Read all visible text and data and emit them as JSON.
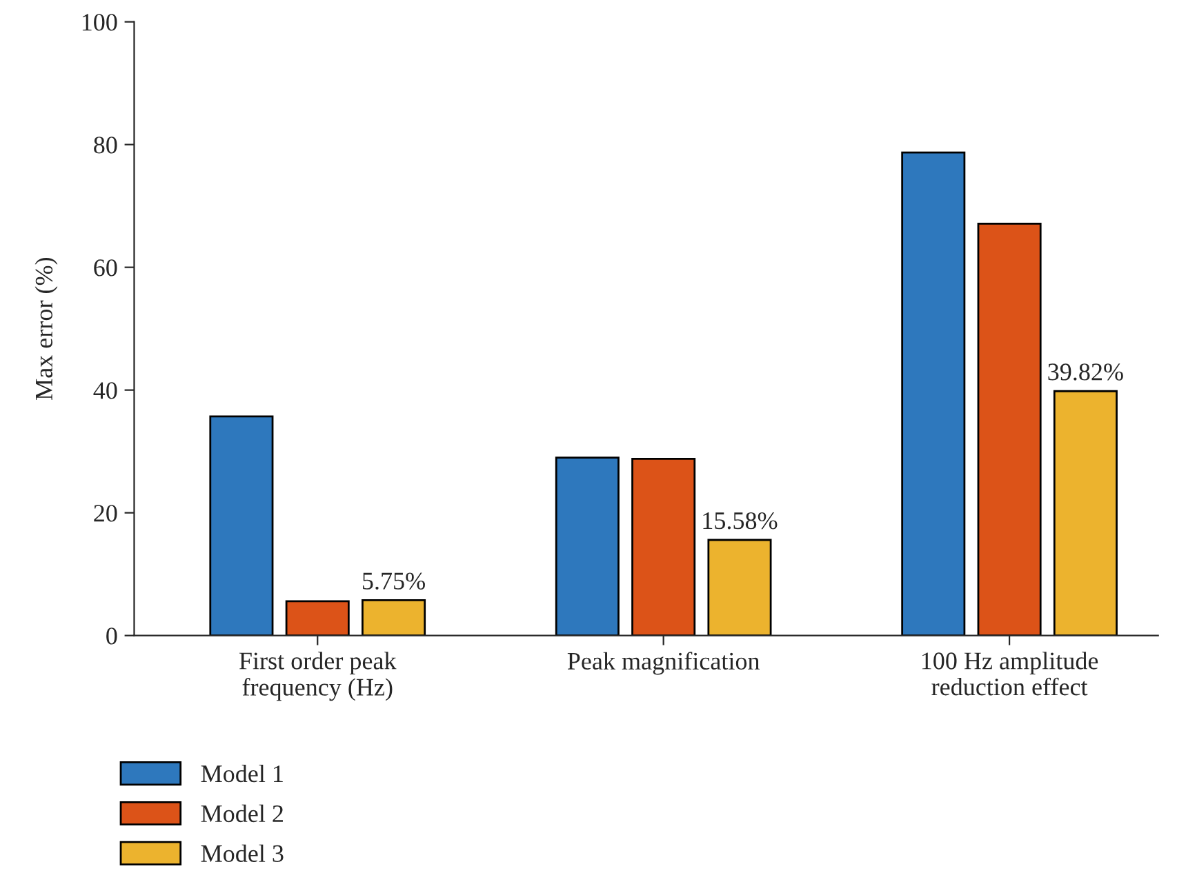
{
  "chart_data": {
    "type": "bar",
    "ylabel": "Max error (%)",
    "categories": [
      "First order peak\nfrequency (Hz)",
      "Peak magnification",
      "100 Hz amplitude\nreduction effect"
    ],
    "series": [
      {
        "name": "Model 1",
        "color": "#2e78bd",
        "values": [
          35.7,
          29.0,
          78.7
        ]
      },
      {
        "name": "Model 2",
        "color": "#dc5318",
        "values": [
          5.6,
          28.8,
          67.1
        ]
      },
      {
        "name": "Model 3",
        "color": "#ecb32e",
        "values": [
          5.75,
          15.58,
          39.82
        ],
        "value_labels": [
          "5.75%",
          "15.58%",
          "39.82%"
        ]
      }
    ],
    "ylim": [
      0,
      100
    ],
    "yticks": [
      0,
      20,
      40,
      60,
      80,
      100
    ],
    "grid": false,
    "legend": "bottom left"
  }
}
